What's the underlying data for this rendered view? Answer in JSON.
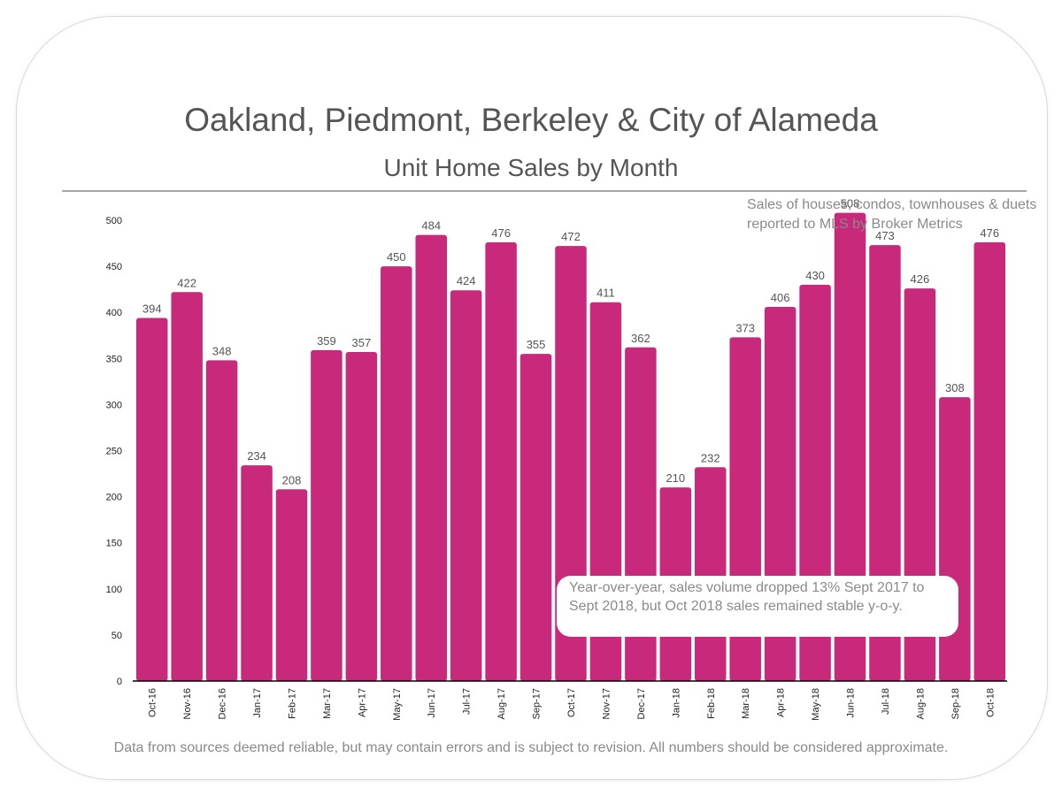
{
  "colors": {
    "bar": "#c8297b",
    "axis": "#000000",
    "text": "#555555",
    "note": "#8a8a8a"
  },
  "header": {
    "title": "Oakland, Piedmont, Berkeley & City of Alameda",
    "subtitle": "Unit Home Sales by Month"
  },
  "source_note": "Sales of houses, condos, townhouses & duets reported to MLS by Broker Metrics",
  "callout": "Year-over-year, sales volume dropped 13% Sept 2017 to Sept 2018, but Oct 2018 sales remained stable y-o-y.",
  "footer": "Data from sources deemed reliable, but may contain errors and is subject to revision.  All numbers should be considered approximate.",
  "chart_data": {
    "type": "bar",
    "title": "Oakland, Piedmont, Berkeley & City of Alameda",
    "subtitle": "Unit Home Sales by Month",
    "xlabel": "",
    "ylabel": "",
    "ylim": [
      0,
      500
    ],
    "yticks": [
      0,
      50,
      100,
      150,
      200,
      250,
      300,
      350,
      400,
      450,
      500
    ],
    "grid": false,
    "categories": [
      "Oct-16",
      "Nov-16",
      "Dec-16",
      "Jan-17",
      "Feb-17",
      "Mar-17",
      "Apr-17",
      "May-17",
      "Jun-17",
      "Jul-17",
      "Aug-17",
      "Sep-17",
      "Oct-17",
      "Nov-17",
      "Dec-17",
      "Jan-18",
      "Feb-18",
      "Mar-18",
      "Apr-18",
      "May-18",
      "Jun-18",
      "Jul-18",
      "Aug-18",
      "Sep-18",
      "Oct-18"
    ],
    "values": [
      394,
      422,
      348,
      234,
      208,
      359,
      357,
      450,
      484,
      424,
      476,
      355,
      472,
      411,
      362,
      210,
      232,
      373,
      406,
      430,
      508,
      473,
      426,
      308,
      476
    ]
  }
}
